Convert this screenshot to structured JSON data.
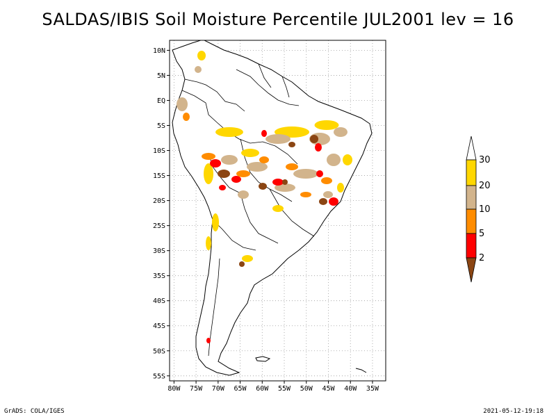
{
  "title": "SALDAS/IBIS Soil Moisture Percentile JUL2001 lev = 16",
  "map": {
    "lat_range": [
      -56,
      12
    ],
    "lon_range": [
      -81,
      -32
    ],
    "lat_ticks": [
      {
        "v": 10,
        "label": "10N"
      },
      {
        "v": 5,
        "label": "5N"
      },
      {
        "v": 0,
        "label": "EQ"
      },
      {
        "v": -5,
        "label": "5S"
      },
      {
        "v": -10,
        "label": "10S"
      },
      {
        "v": -15,
        "label": "15S"
      },
      {
        "v": -20,
        "label": "20S"
      },
      {
        "v": -25,
        "label": "25S"
      },
      {
        "v": -30,
        "label": "30S"
      },
      {
        "v": -35,
        "label": "35S"
      },
      {
        "v": -40,
        "label": "40S"
      },
      {
        "v": -45,
        "label": "45S"
      },
      {
        "v": -50,
        "label": "50S"
      },
      {
        "v": -55,
        "label": "55S"
      }
    ],
    "lon_ticks": [
      {
        "v": -80,
        "label": "80W"
      },
      {
        "v": -75,
        "label": "75W"
      },
      {
        "v": -70,
        "label": "70W"
      },
      {
        "v": -65,
        "label": "65W"
      },
      {
        "v": -60,
        "label": "60W"
      },
      {
        "v": -55,
        "label": "55W"
      },
      {
        "v": -50,
        "label": "50W"
      },
      {
        "v": -45,
        "label": "45W"
      },
      {
        "v": -40,
        "label": "40W"
      },
      {
        "v": -35,
        "label": "35W"
      }
    ],
    "grid": "dotted"
  },
  "legend": {
    "levels": [
      "30",
      "20",
      "10",
      "5",
      "2"
    ],
    "colors": {
      "above30": "#ffffff",
      "20-30": "#ffd700",
      "10-20": "#d2b48c",
      "5-10": "#ff8c00",
      "2-5": "#ff0000",
      "below2": "#8b4513"
    }
  },
  "footer": {
    "left": "GrADS: COLA/IGES",
    "right": "2021-05-12-19:18"
  }
}
